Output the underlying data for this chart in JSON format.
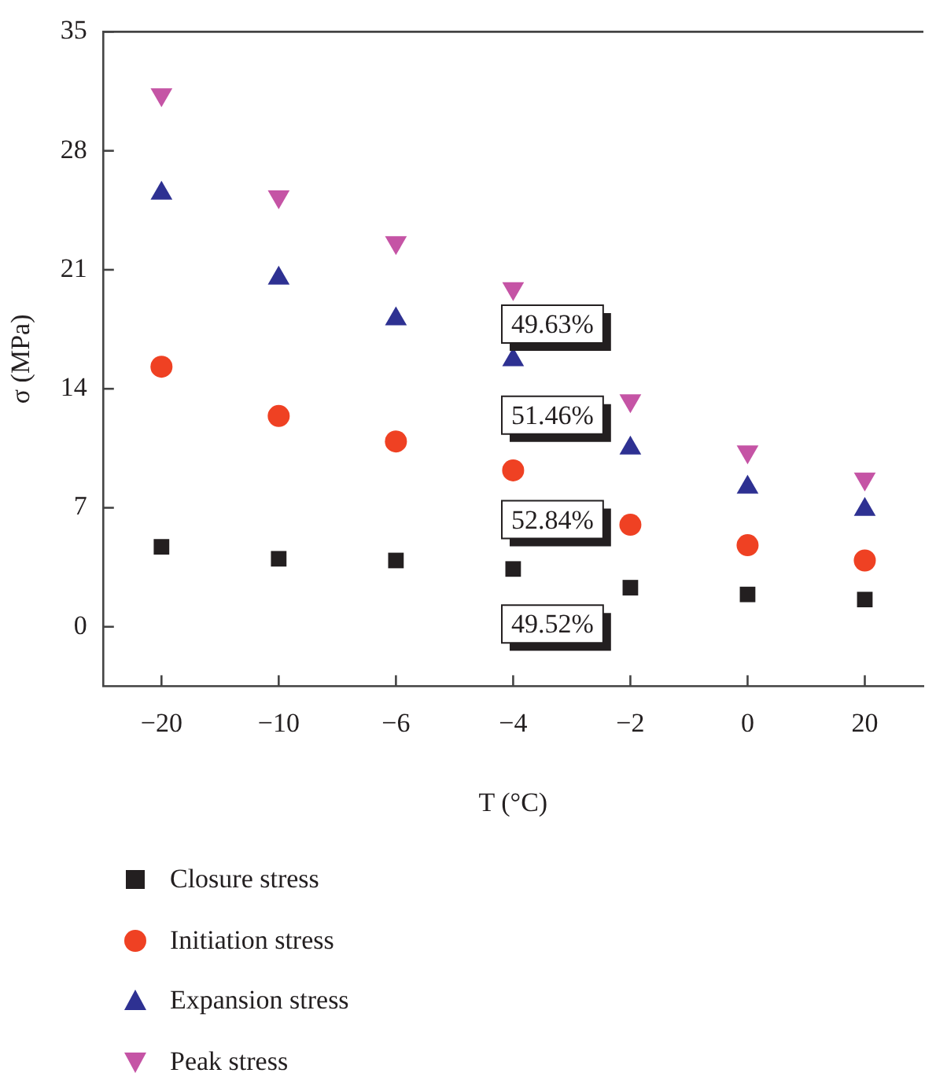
{
  "chart_data": {
    "type": "scatter",
    "xlabel": "T (°C)",
    "ylabel": "σ (MPa)",
    "categories": [
      "−20",
      "−10",
      "−6",
      "−4",
      "−2",
      "0",
      "20"
    ],
    "ylim": [
      -3.5,
      35
    ],
    "yticks": [
      0,
      7,
      14,
      21,
      28,
      35
    ],
    "grid": false,
    "legend": "bottom",
    "series": [
      {
        "name": "Closure stress",
        "color": "#231f20",
        "marker": "square",
        "values": [
          4.7,
          4.0,
          3.9,
          3.4,
          2.3,
          1.9,
          1.6
        ]
      },
      {
        "name": "Initiation stress",
        "color": "#ef4123",
        "marker": "circle",
        "values": [
          15.3,
          12.4,
          10.9,
          9.2,
          6.0,
          4.8,
          3.9
        ]
      },
      {
        "name": "Expansion stress",
        "color": "#2e3192",
        "marker": "triangle",
        "values": [
          25.5,
          20.5,
          18.1,
          15.7,
          10.5,
          8.2,
          6.9
        ]
      },
      {
        "name": "Peak stress",
        "color": "#c554a5",
        "marker": "triangle-down",
        "values": [
          31.3,
          25.3,
          22.6,
          19.9,
          13.3,
          10.3,
          8.7
        ]
      }
    ],
    "annotations": [
      "49.63%",
      "51.46%",
      "52.84%",
      "49.52%"
    ]
  }
}
